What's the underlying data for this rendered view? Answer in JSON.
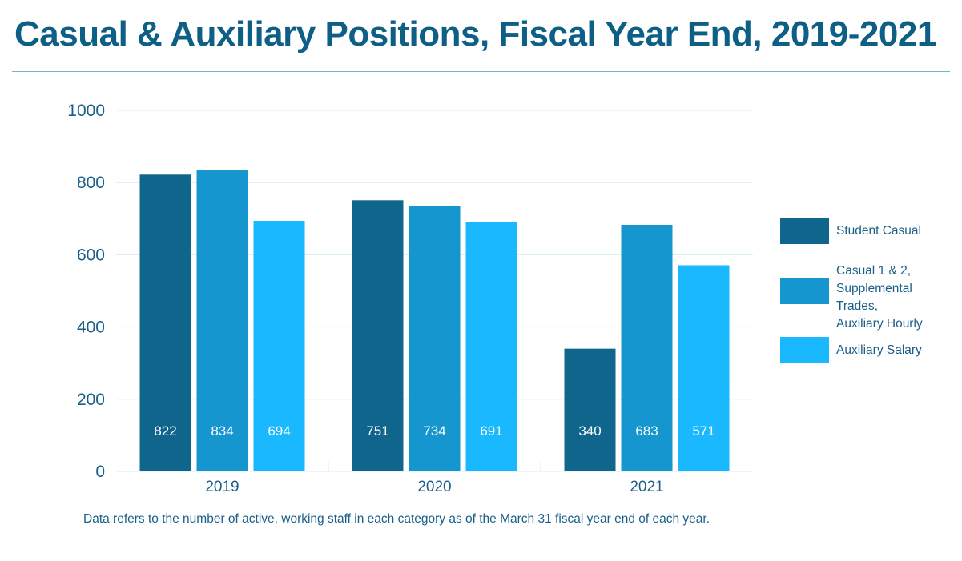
{
  "title": "Casual & Auxiliary Positions, Fiscal Year End, 2019-2021",
  "footnote": "Data refers to the number of active, working staff in each category as of the March 31 fiscal year end of each year.",
  "colors": {
    "title": "#0d5f86",
    "axis_text": "#1a5f88",
    "gridline": "#d3eef4"
  },
  "chart_data": {
    "type": "bar",
    "categories": [
      "2019",
      "2020",
      "2021"
    ],
    "series": [
      {
        "name": "Student Casual",
        "color": "#10658c",
        "values": [
          822,
          751,
          340
        ]
      },
      {
        "name": "Casual 1 & 2,\nSupplemental Trades,\nAuxiliary Hourly",
        "color": "#1596cf",
        "values": [
          834,
          734,
          683
        ]
      },
      {
        "name": "Auxiliary Salary",
        "color": "#1ab9ff",
        "values": [
          694,
          691,
          571
        ]
      }
    ],
    "ylim": [
      0,
      1000
    ],
    "yticks": [
      0,
      200,
      400,
      600,
      800,
      1000
    ],
    "grid": true,
    "legend_position": "right",
    "data_labels": true
  }
}
